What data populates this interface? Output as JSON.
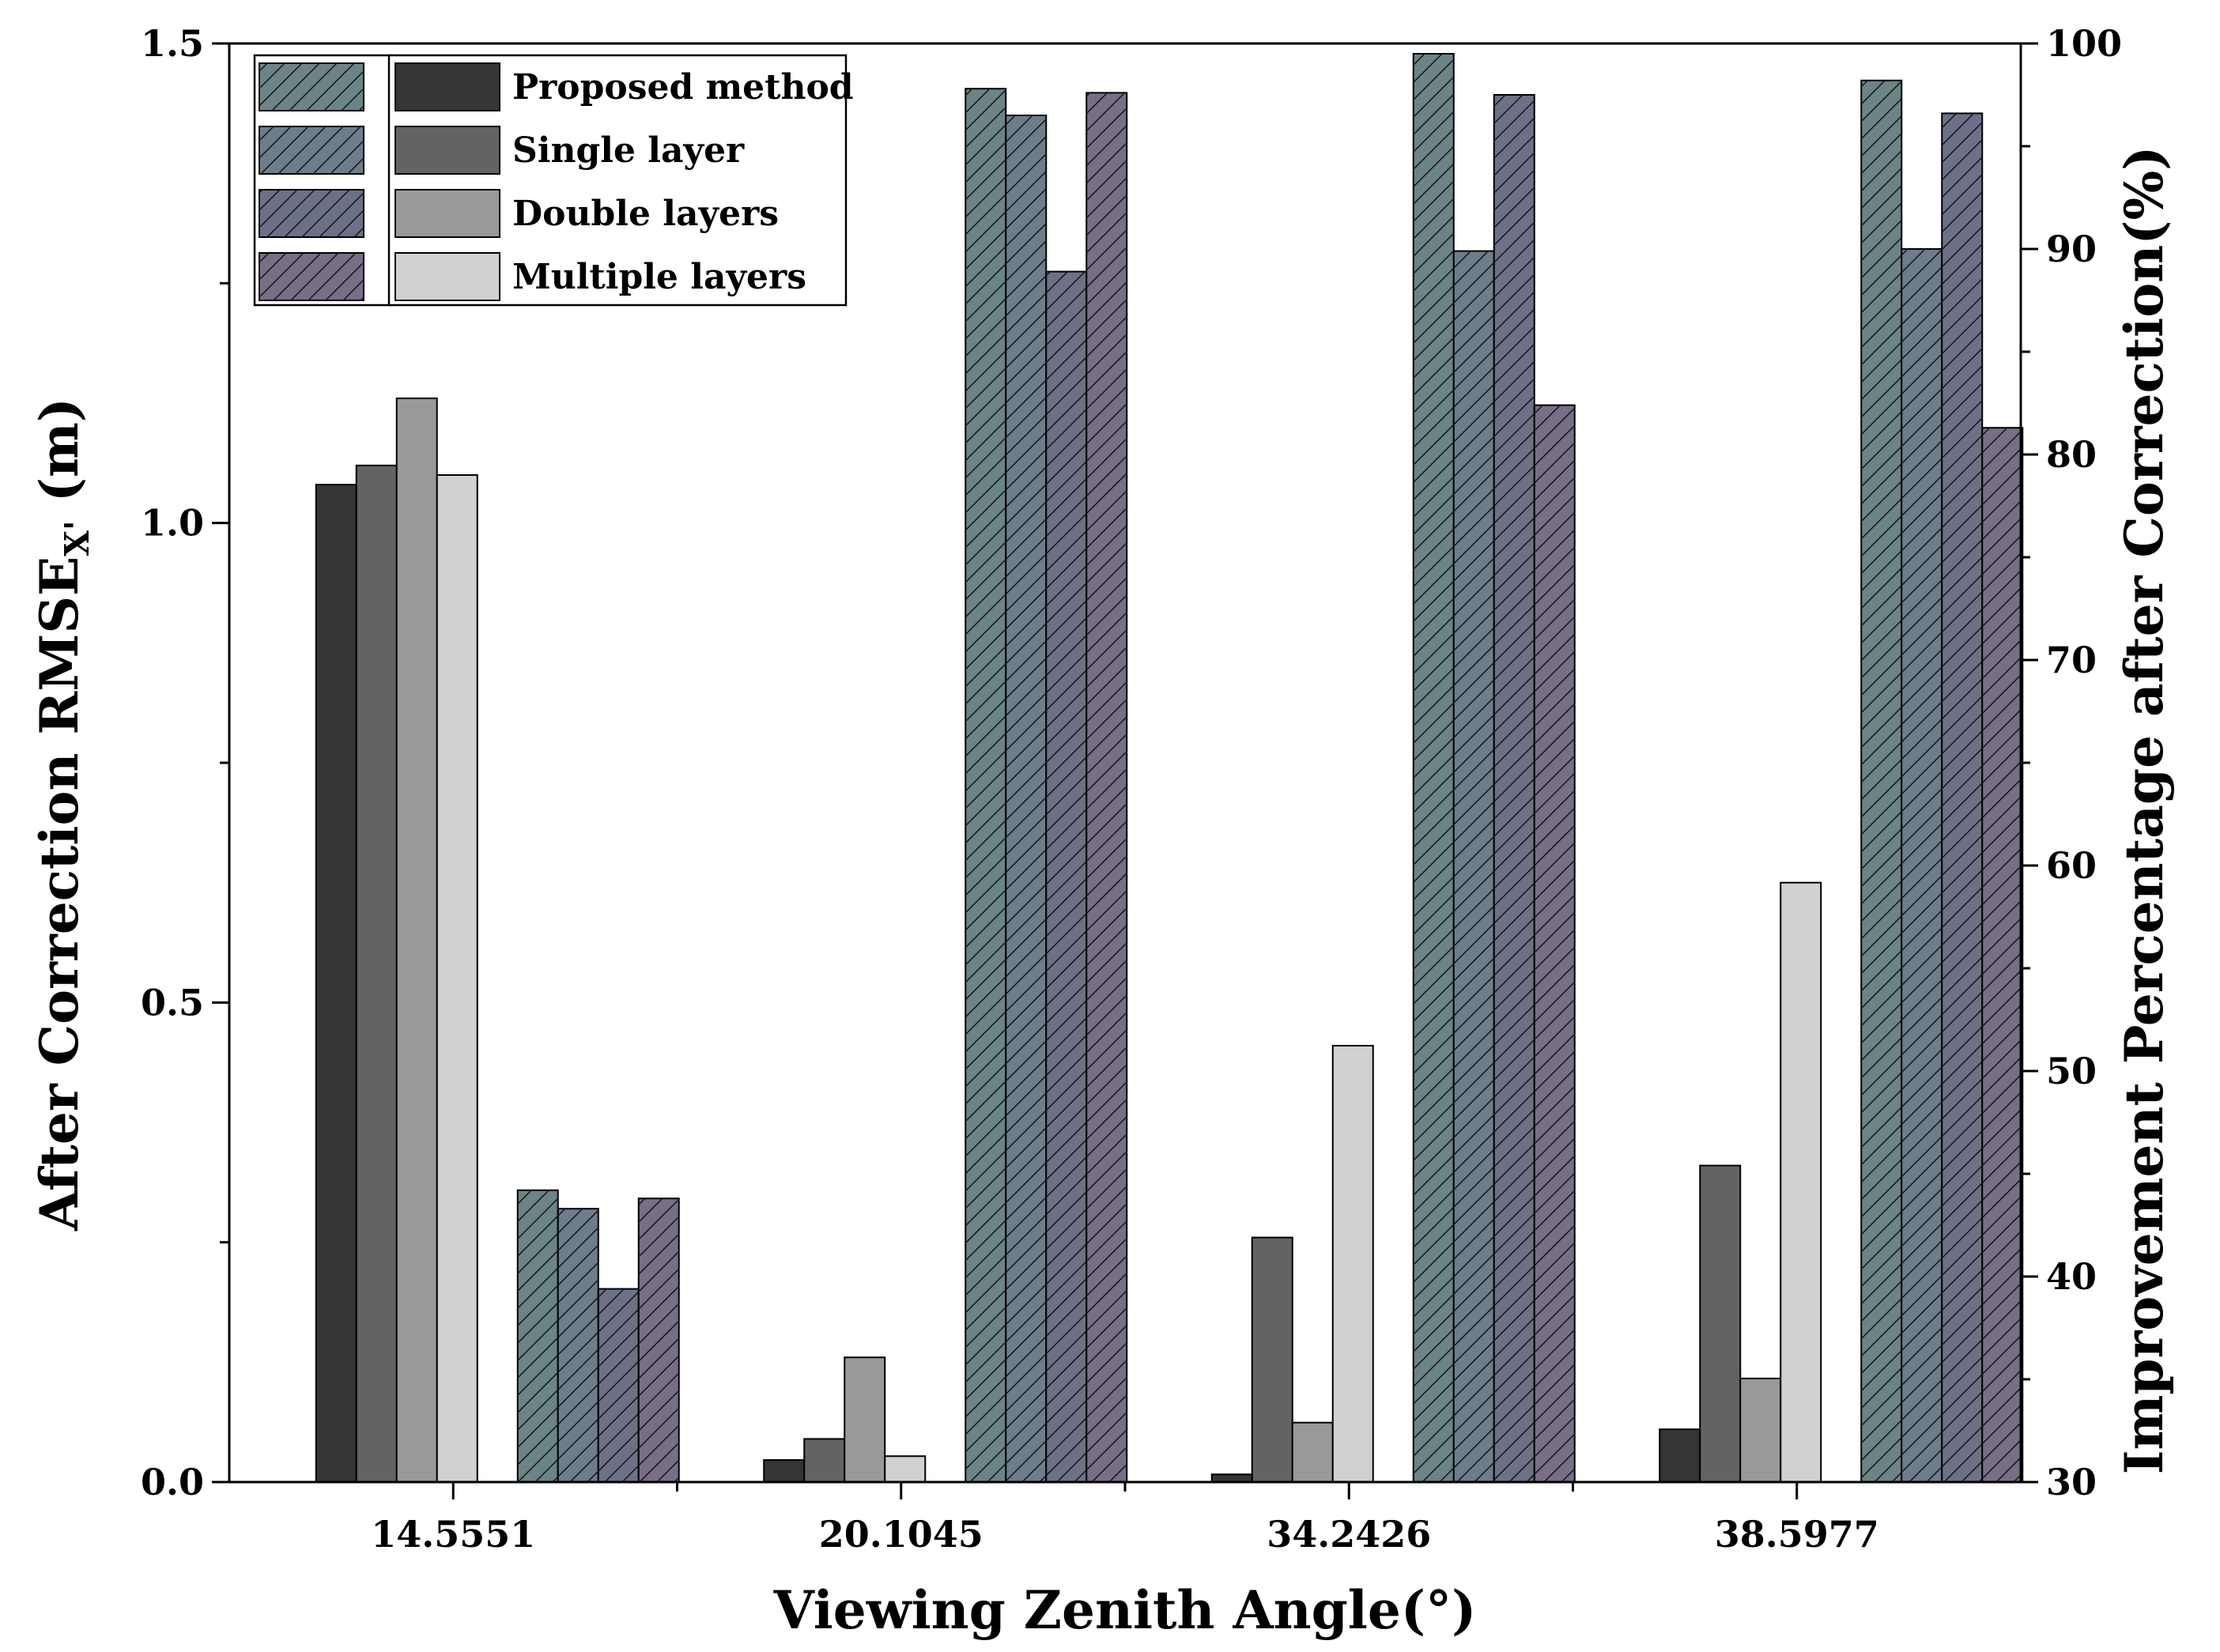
{
  "chart_data": {
    "type": "bar",
    "xlabel": "Viewing Zenith Angle(°)",
    "ylabel_left_main": "After Correction RMSE",
    "ylabel_left_sub": "X'",
    "ylabel_left_unit": " (m)",
    "ylabel_right": "Improvement Percentage after Correction(%)",
    "categories": [
      "14.5551",
      "20.1045",
      "34.2426",
      "38.5977"
    ],
    "ylim_left": [
      0,
      1.5
    ],
    "yticks_left": [
      "0.0",
      "0.5",
      "1.0",
      "1.5"
    ],
    "ylim_right": [
      30,
      100
    ],
    "yticks_right": [
      "30",
      "40",
      "50",
      "60",
      "70",
      "80",
      "90",
      "100"
    ],
    "legend_position": "top-left",
    "series_rmse": [
      {
        "name": "Proposed method",
        "axis": "left",
        "color": "#353535",
        "values": [
          1.04,
          0.023,
          0.008,
          0.055
        ]
      },
      {
        "name": "Single layer",
        "axis": "left",
        "color": "#636363",
        "values": [
          1.06,
          0.045,
          0.255,
          0.33
        ]
      },
      {
        "name": "Double layers",
        "axis": "left",
        "color": "#999999",
        "values": [
          1.13,
          0.13,
          0.062,
          0.108
        ]
      },
      {
        "name": "Multiple layers",
        "axis": "left",
        "color": "#d1d1d1",
        "values": [
          1.05,
          0.027,
          0.455,
          0.625
        ]
      }
    ],
    "series_improvement": [
      {
        "name": "Proposed method",
        "axis": "right",
        "color": "#6b8486",
        "hatch": true,
        "values": [
          44.2,
          97.8,
          99.5,
          98.2
        ]
      },
      {
        "name": "Single layer",
        "axis": "right",
        "color": "#6d7d8c",
        "hatch": true,
        "values": [
          43.3,
          96.5,
          89.9,
          90.0
        ]
      },
      {
        "name": "Double layers",
        "axis": "right",
        "color": "#6d7188",
        "hatch": true,
        "values": [
          39.4,
          88.9,
          97.5,
          96.6
        ]
      },
      {
        "name": "Multiple layers",
        "axis": "right",
        "color": "#786f86",
        "hatch": true,
        "values": [
          43.8,
          97.6,
          82.4,
          81.3
        ]
      }
    ]
  }
}
